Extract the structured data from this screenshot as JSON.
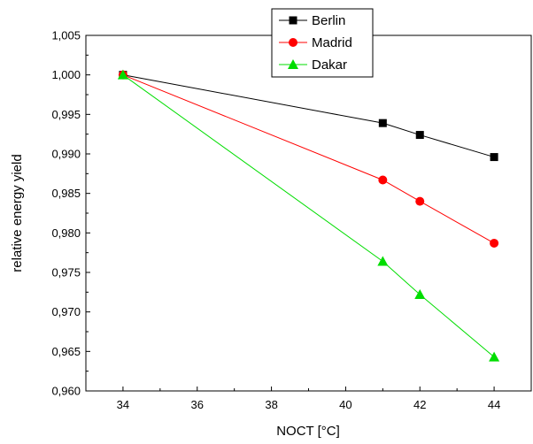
{
  "chart_data": {
    "type": "line",
    "title": "",
    "xlabel": "NOCT [°C]",
    "ylabel": "relative energy yield",
    "xlim": [
      33,
      45
    ],
    "ylim": [
      0.96,
      1.005
    ],
    "x_ticks": [
      {
        "value": 34,
        "label": "34"
      },
      {
        "value": 36,
        "label": "36"
      },
      {
        "value": 38,
        "label": "38"
      },
      {
        "value": 40,
        "label": "40"
      },
      {
        "value": 42,
        "label": "42"
      },
      {
        "value": 44,
        "label": "44"
      }
    ],
    "y_ticks": [
      {
        "value": 0.96,
        "label": "0,960"
      },
      {
        "value": 0.965,
        "label": "0,965"
      },
      {
        "value": 0.97,
        "label": "0,970"
      },
      {
        "value": 0.975,
        "label": "0,975"
      },
      {
        "value": 0.98,
        "label": "0,980"
      },
      {
        "value": 0.985,
        "label": "0,985"
      },
      {
        "value": 0.99,
        "label": "0,990"
      },
      {
        "value": 0.995,
        "label": "0,995"
      },
      {
        "value": 1.0,
        "label": "1,000"
      },
      {
        "value": 1.005,
        "label": "1,005"
      }
    ],
    "x": [
      34,
      41,
      42,
      44
    ],
    "series": [
      {
        "name": "Berlin",
        "color": "#000000",
        "marker": "square",
        "values": [
          1.0,
          0.9939,
          0.9924,
          0.9896
        ]
      },
      {
        "name": "Madrid",
        "color": "#ff0000",
        "marker": "circle",
        "values": [
          1.0,
          0.9867,
          0.984,
          0.9787
        ]
      },
      {
        "name": "Dakar",
        "color": "#00dd00",
        "marker": "triangle",
        "values": [
          1.0,
          0.9764,
          0.9722,
          0.9643
        ]
      }
    ],
    "legend": {
      "position": "top-center",
      "entries": [
        "Berlin",
        "Madrid",
        "Dakar"
      ]
    },
    "grid": false
  }
}
